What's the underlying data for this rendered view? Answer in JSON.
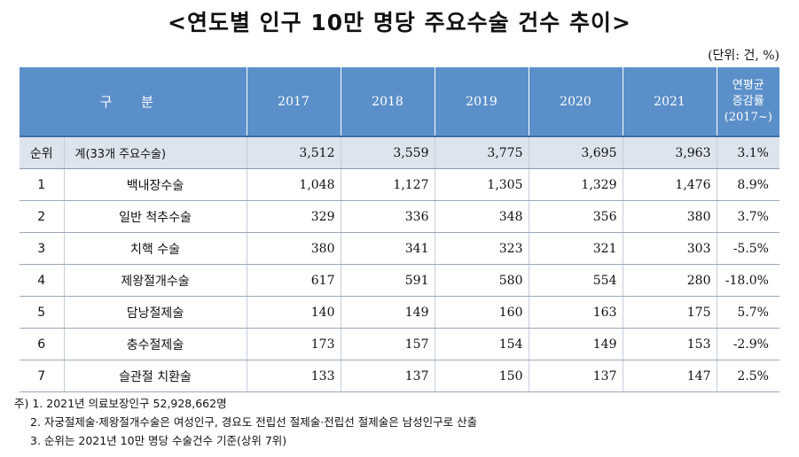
{
  "title": "<연도별 인구 10만 명당 주요수술 건수 추이>",
  "unit": "(단위: 건, %)",
  "table": {
    "header": {
      "gubun": "구 분",
      "years": [
        "2017",
        "2018",
        "2019",
        "2020",
        "2021"
      ],
      "growth_line1": "연평균",
      "growth_line2": "증감률",
      "growth_line3": "(2017~)"
    },
    "total": {
      "rank": "순위",
      "name": "계(33개 주요수술)",
      "values": [
        "3,512",
        "3,559",
        "3,775",
        "3,695",
        "3,963"
      ],
      "rate": "3.1%"
    },
    "rows": [
      {
        "rank": "1",
        "name": "백내장수술",
        "values": [
          "1,048",
          "1,127",
          "1,305",
          "1,329",
          "1,476"
        ],
        "rate": "8.9%"
      },
      {
        "rank": "2",
        "name": "일반 척추수술",
        "values": [
          "329",
          "336",
          "348",
          "356",
          "380"
        ],
        "rate": "3.7%"
      },
      {
        "rank": "3",
        "name": "치핵 수술",
        "values": [
          "380",
          "341",
          "323",
          "321",
          "303"
        ],
        "rate": "-5.5%"
      },
      {
        "rank": "4",
        "name": "제왕절개수술",
        "values": [
          "617",
          "591",
          "580",
          "554",
          "280"
        ],
        "rate": "-18.0%"
      },
      {
        "rank": "5",
        "name": "담낭절제술",
        "values": [
          "140",
          "149",
          "160",
          "163",
          "175"
        ],
        "rate": "5.7%"
      },
      {
        "rank": "6",
        "name": "충수절제술",
        "values": [
          "173",
          "157",
          "154",
          "149",
          "153"
        ],
        "rate": "-2.9%"
      },
      {
        "rank": "7",
        "name": "슬관절 치환술",
        "values": [
          "133",
          "137",
          "150",
          "137",
          "147"
        ],
        "rate": "2.5%"
      }
    ]
  },
  "notes": {
    "n1": "주) 1. 2021년 의료보장인구 52,928,662명",
    "n2": "2. 자궁절제술·제왕절개수술은 여성인구, 경요도 전립선 절제술·전립선 절제술은 남성인구로 산출",
    "n3": "3. 순위는 2021년 10만 명당 수술건수 기준(상위 7위)"
  }
}
